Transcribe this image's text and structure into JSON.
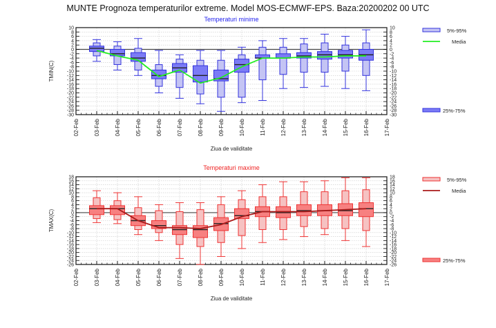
{
  "page": {
    "title": "MUNTE  Prognoza temperaturilor extreme.  Model MOS-ECMWF-EPS. Baza:20200202 00 UTC"
  },
  "chart_data": [
    {
      "type": "box",
      "id": "tmin",
      "title": "Temperaturi minime",
      "title_color": "#2222ee",
      "xlabel": "Ziua de validitate",
      "ylabel": "TMIN(C)",
      "ylim": [
        -30,
        10
      ],
      "ytick_step": 2,
      "reference_line": 0,
      "grid": true,
      "x_ticks": [
        "02-Feb",
        "03-Feb",
        "04-Feb",
        "05-Feb",
        "06-Feb",
        "07-Feb",
        "08-Feb",
        "09-Feb",
        "10-Feb",
        "11-Feb",
        "12-Feb",
        "13-Feb",
        "14-Feb",
        "15-Feb",
        "16-Feb",
        "17-Feb"
      ],
      "categories": [
        "03-Feb",
        "04-Feb",
        "05-Feb",
        "06-Feb",
        "07-Feb",
        "08-Feb",
        "09-Feb",
        "10-Feb",
        "11-Feb",
        "12-Feb",
        "13-Feb",
        "14-Feb",
        "15-Feb",
        "16-Feb"
      ],
      "colors": {
        "outer_fill": "#c4c4f4",
        "inner_fill": "#7b7bf6",
        "stroke": "#3333dd",
        "mean_line": "#22ee22"
      },
      "legend": {
        "outer": "5%-95%",
        "mean": "Media",
        "inner": "25%-75%",
        "placement": "right"
      },
      "series": {
        "min": [
          -5.5,
          -9.5,
          -12,
          -20,
          -22.5,
          -25,
          -28.5,
          -24.5,
          -23.5,
          -18,
          -17.5,
          -17,
          -18,
          -19
        ],
        "p5": [
          -3,
          -7,
          -9.5,
          -17,
          -17.5,
          -20.5,
          -22,
          -22,
          -14,
          -11.5,
          -10.5,
          -10.5,
          -10,
          -12
        ],
        "p25": [
          -1,
          -3,
          -5.5,
          -13.5,
          -10.5,
          -15,
          -14.5,
          -10.5,
          -4,
          -4,
          -4,
          -4.5,
          -4,
          -5
        ],
        "median": [
          0.5,
          -2,
          -4,
          -12,
          -8.5,
          -12,
          -13.5,
          -7,
          -4,
          -4,
          -3,
          -2.5,
          -2.5,
          -2.5
        ],
        "p75": [
          1.5,
          0,
          -1.5,
          -9.5,
          -6.5,
          -7.5,
          -9.5,
          -4.5,
          -2.5,
          -2,
          -1.5,
          -1,
          -0.5,
          0
        ],
        "p95": [
          3,
          1.5,
          0.5,
          -7,
          -4.5,
          -5,
          -5,
          -2.5,
          1,
          1,
          2.5,
          3,
          2,
          3
        ],
        "max": [
          4.5,
          3.5,
          5,
          -0.5,
          -2.5,
          -0.5,
          -0.5,
          1,
          4,
          5,
          5,
          7,
          6,
          9
        ],
        "mean": [
          -0.5,
          -3,
          -5,
          -12.5,
          -9.5,
          -15.5,
          -13,
          -8,
          -4,
          -4,
          -3.5,
          -3.5,
          -3,
          -3
        ]
      }
    },
    {
      "type": "box",
      "id": "tmax",
      "title": "Temperaturi maxime",
      "title_color": "#ee2222",
      "xlabel": "Ziua de validitate",
      "ylabel": "TMAX(C)",
      "ylim": [
        -26,
        18
      ],
      "ytick_step": 2,
      "reference_line": 0,
      "grid": true,
      "x_ticks": [
        "02-Feb",
        "03-Feb",
        "04-Feb",
        "05-Feb",
        "06-Feb",
        "07-Feb",
        "08-Feb",
        "09-Feb",
        "10-Feb",
        "11-Feb",
        "12-Feb",
        "13-Feb",
        "14-Feb",
        "15-Feb",
        "16-Feb",
        "17-Feb"
      ],
      "categories": [
        "03-Feb",
        "04-Feb",
        "05-Feb",
        "06-Feb",
        "07-Feb",
        "08-Feb",
        "09-Feb",
        "10-Feb",
        "11-Feb",
        "12-Feb",
        "13-Feb",
        "14-Feb",
        "15-Feb",
        "16-Feb"
      ],
      "colors": {
        "outer_fill": "#f6c2c2",
        "inner_fill": "#f78080",
        "stroke": "#ee3333",
        "mean_line": "#aa1a1a"
      },
      "legend": {
        "outer": "5%-95%",
        "mean": "Media",
        "inner": "25%-75%",
        "placement": "right"
      },
      "series": {
        "min": [
          -5,
          -5.5,
          -11,
          -14,
          -23,
          -26,
          -22,
          -18,
          -15,
          -13.5,
          -12,
          -11,
          -14,
          -17
        ],
        "p5": [
          -3,
          -3.5,
          -8.5,
          -10,
          -16,
          -17,
          -15,
          -11.5,
          -8.5,
          -8.5,
          -7,
          -8,
          -8,
          -9
        ],
        "p25": [
          -1,
          -1,
          -6.5,
          -8,
          -11,
          -12.5,
          -9,
          -3,
          -2,
          -2.5,
          -1.5,
          -1.5,
          -1.5,
          -2
        ],
        "median": [
          2,
          2,
          -4,
          -6.5,
          -8.5,
          -8.5,
          -5.5,
          -1.5,
          0.5,
          0,
          1,
          1,
          1,
          2
        ],
        "p75": [
          3.5,
          3.5,
          -1.5,
          -4,
          -6.5,
          -6.5,
          -2.5,
          2,
          3,
          3,
          4,
          4,
          4.5,
          5
        ],
        "p95": [
          7.5,
          6,
          2.5,
          1,
          0.5,
          1.5,
          4,
          6.5,
          8,
          8,
          10.5,
          10.5,
          11,
          11.5
        ],
        "max": [
          11,
          10,
          8,
          4,
          5,
          5,
          8,
          11,
          14,
          15.5,
          15.5,
          16,
          17.5,
          17.5
        ],
        "mean": [
          2,
          2,
          -4,
          -7.5,
          -7.5,
          -8,
          -6,
          -2,
          0.5,
          0.5,
          0.5,
          1,
          1.5,
          2
        ]
      }
    }
  ]
}
